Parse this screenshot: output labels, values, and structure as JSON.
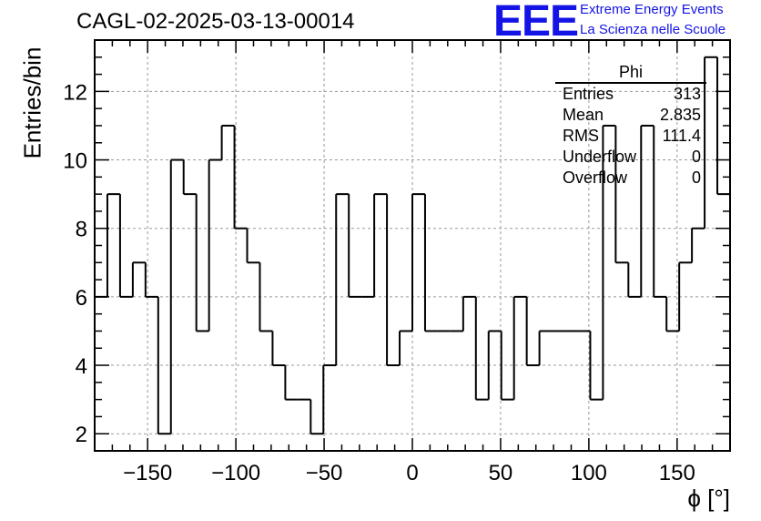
{
  "header": {
    "title": "CAGL-02-2025-03-13-00014",
    "logo_text": "EEE",
    "logo_line1": "Extreme Energy Events",
    "logo_line2": "La Scienza nelle Scuole",
    "accent_color": "#1414e6"
  },
  "stats_box": {
    "name": "Phi",
    "rows": [
      {
        "label": "Entries",
        "value": "313"
      },
      {
        "label": "Mean",
        "value": "2.835"
      },
      {
        "label": "RMS",
        "value": "111.4"
      },
      {
        "label": "Underflow",
        "value": "0"
      },
      {
        "label": "Overflow",
        "value": "0"
      }
    ]
  },
  "chart_data": {
    "type": "bar",
    "style": "step-histogram",
    "title": "CAGL-02-2025-03-13-00014",
    "xlabel": "ϕ [°]",
    "ylabel": "Entries/bin",
    "xlim": [
      -180,
      180
    ],
    "ylim": [
      1.5,
      13.5
    ],
    "grid": true,
    "xticks": [
      -150,
      -100,
      -50,
      0,
      50,
      100,
      150
    ],
    "xtick_labels": [
      "−150",
      "−100",
      "−50",
      "0",
      "50",
      "100",
      "150"
    ],
    "yticks": [
      2,
      4,
      6,
      8,
      10,
      12
    ],
    "ytick_labels": [
      "2",
      "4",
      "6",
      "8",
      "10",
      "12"
    ],
    "bin_width": 7.2,
    "x_start": -180,
    "values": [
      6,
      9,
      6,
      7,
      6,
      2,
      10,
      9,
      5,
      10,
      11,
      8,
      7,
      5,
      4,
      3,
      3,
      2,
      4,
      9,
      6,
      6,
      9,
      4,
      5,
      9,
      5,
      5,
      5,
      6,
      3,
      5,
      3,
      6,
      4,
      5,
      5,
      5,
      5,
      3,
      11,
      7,
      6,
      11,
      6,
      5,
      7,
      8,
      13,
      9
    ]
  }
}
